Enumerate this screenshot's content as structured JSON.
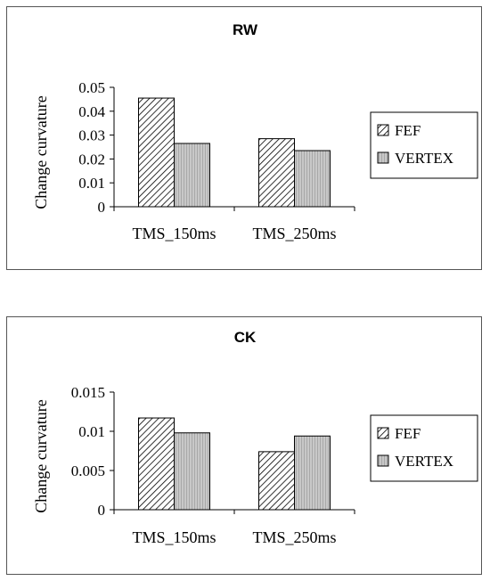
{
  "chart_data": [
    {
      "type": "bar",
      "title": "RW",
      "ylabel": "Change curvature",
      "xlabel": "",
      "categories": [
        "TMS_150ms",
        "TMS_250ms"
      ],
      "series": [
        {
          "name": "FEF",
          "values": [
            0.0455,
            0.0285
          ],
          "pattern": "diagonal-hatch"
        },
        {
          "name": "VERTEX",
          "values": [
            0.0265,
            0.0235
          ],
          "pattern": "gray-vertical-lines"
        }
      ],
      "ylim": [
        0,
        0.05
      ],
      "yticks": [
        0,
        0.01,
        0.02,
        0.03,
        0.04,
        0.05
      ],
      "ytick_labels": [
        "0",
        "0.01",
        "0.02",
        "0.03",
        "0.04",
        "0.05"
      ],
      "grid": false,
      "legend": "right"
    },
    {
      "type": "bar",
      "title": "CK",
      "ylabel": "Change curvature",
      "xlabel": "",
      "categories": [
        "TMS_150ms",
        "TMS_250ms"
      ],
      "series": [
        {
          "name": "FEF",
          "values": [
            0.0117,
            0.0074
          ],
          "pattern": "diagonal-hatch"
        },
        {
          "name": "VERTEX",
          "values": [
            0.0098,
            0.0094
          ],
          "pattern": "gray-vertical-lines"
        }
      ],
      "ylim": [
        0,
        0.015
      ],
      "yticks": [
        0,
        0.005,
        0.01,
        0.015
      ],
      "ytick_labels": [
        "0",
        "0.005",
        "0.01",
        "0.015"
      ],
      "grid": false,
      "legend": "right"
    }
  ],
  "colors": {
    "fef_fill": "#ffffff",
    "fef_hatch": "#000000",
    "vertex_fill": "#c8c8c8",
    "vertex_lines": "#a8a8a8",
    "axis": "#000000",
    "panel_border": "#555555"
  }
}
